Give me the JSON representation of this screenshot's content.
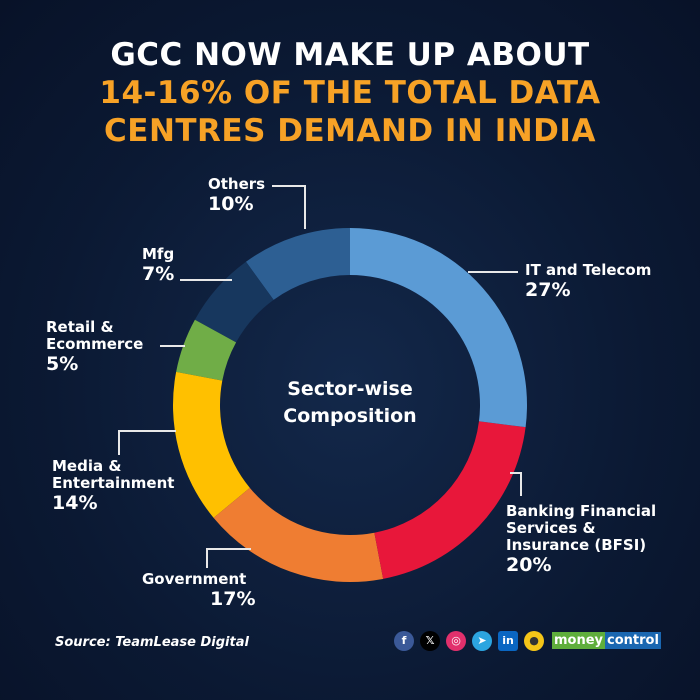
{
  "title_lines": [
    "GCC NOW MAKE UP ABOUT",
    "14-16% OF THE TOTAL DATA",
    "CENTRES DEMAND IN INDIA"
  ],
  "center_label": [
    "Sector-wise",
    "Composition"
  ],
  "source": "Source: TeamLease Digital",
  "brand": {
    "part1": "money",
    "part2": "control"
  },
  "social_icons": [
    "facebook-icon",
    "x-icon",
    "instagram-icon",
    "telegram-icon",
    "linkedin-icon",
    "koo-icon"
  ],
  "chart_data": {
    "type": "pie",
    "donut": true,
    "start": "top",
    "direction": "clockwise",
    "slices": [
      {
        "label": "IT and Telecom",
        "value": 27,
        "display": "27%",
        "color": "#5b9bd5"
      },
      {
        "label": "Banking Financial Services & Insurance (BFSI)",
        "value": 20,
        "display": "20%",
        "color": "#e8173a"
      },
      {
        "label": "Government",
        "value": 17,
        "display": "17%",
        "color": "#ef7d32"
      },
      {
        "label": "Media & Entertainment",
        "value": 14,
        "display": "14%",
        "color": "#ffc000"
      },
      {
        "label": "Retail & Ecommerce",
        "value": 5,
        "display": "5%",
        "color": "#70ad47"
      },
      {
        "label": "Mfg",
        "value": 7,
        "display": "7%",
        "color": "#17375e"
      },
      {
        "label": "Others",
        "value": 10,
        "display": "10%",
        "color": "#2d5f93"
      }
    ]
  }
}
